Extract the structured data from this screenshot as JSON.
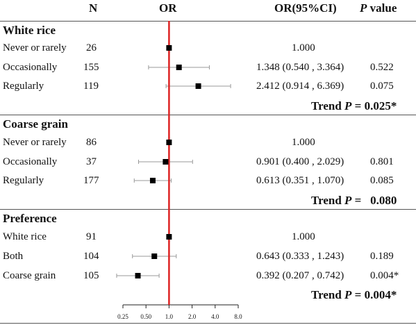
{
  "headers": {
    "n": "N",
    "or": "OR",
    "ci": "OR(95%CI)",
    "p_italic": "P",
    "p_rest": " value"
  },
  "groups": [
    {
      "title": "White rice",
      "rows": [
        {
          "label": "Never or rarely",
          "n": "26",
          "ci_text": "1.000",
          "p": ""
        },
        {
          "label": "Occasionally",
          "n": "155",
          "ci_text": "1.348 (0.540 , 3.364)",
          "p": "0.522"
        },
        {
          "label": "Regularly",
          "n": "119",
          "ci_text": "2.412 (0.914 , 6.369)",
          "p": "0.075"
        }
      ],
      "trend_prefix": "Trend ",
      "trend_p": "P",
      "trend_value": " = 0.025*"
    },
    {
      "title": "Coarse grain",
      "rows": [
        {
          "label": "Never or rarely",
          "n": "86",
          "ci_text": "1.000",
          "p": ""
        },
        {
          "label": "Occasionally",
          "n": "37",
          "ci_text": "0.901 (0.400 , 2.029)",
          "p": "0.801"
        },
        {
          "label": "Regularly",
          "n": "177",
          "ci_text": "0.613 (0.351 , 1.070)",
          "p": "0.085"
        }
      ],
      "trend_prefix": "Trend ",
      "trend_p": "P",
      "trend_value": " =   0.080"
    },
    {
      "title": "Preference",
      "rows": [
        {
          "label": "White rice",
          "n": "91",
          "ci_text": "1.000",
          "p": ""
        },
        {
          "label": "Both",
          "n": "104",
          "ci_text": "0.643 (0.333 , 1.243)",
          "p": "0.189"
        },
        {
          "label": "Coarse grain",
          "n": "105",
          "ci_text": "0.392 (0.207 , 0.742)",
          "p": "0.004*"
        }
      ],
      "trend_prefix": "Trend ",
      "trend_p": "P",
      "trend_value": " = 0.004*"
    }
  ],
  "chart_data": {
    "type": "forest",
    "xscale": "log2",
    "xlim": [
      0.25,
      8.0
    ],
    "reference_line": 1.0,
    "reference_color": "#dd2222",
    "tick_labels": [
      "0.25",
      "0.50",
      "1.0",
      "2.0",
      "4.0",
      "8.0"
    ],
    "tick_values": [
      0.25,
      0.5,
      1.0,
      2.0,
      4.0,
      8.0
    ],
    "points": [
      {
        "group": "White rice",
        "label": "Never or rarely",
        "or": 1.0,
        "lo": null,
        "hi": null
      },
      {
        "group": "White rice",
        "label": "Occasionally",
        "or": 1.348,
        "lo": 0.54,
        "hi": 3.364
      },
      {
        "group": "White rice",
        "label": "Regularly",
        "or": 2.412,
        "lo": 0.914,
        "hi": 6.369
      },
      {
        "group": "Coarse grain",
        "label": "Never or rarely",
        "or": 1.0,
        "lo": null,
        "hi": null
      },
      {
        "group": "Coarse grain",
        "label": "Occasionally",
        "or": 0.901,
        "lo": 0.4,
        "hi": 2.029
      },
      {
        "group": "Coarse grain",
        "label": "Regularly",
        "or": 0.613,
        "lo": 0.351,
        "hi": 1.07
      },
      {
        "group": "Preference",
        "label": "White rice",
        "or": 1.0,
        "lo": null,
        "hi": null
      },
      {
        "group": "Preference",
        "label": "Both",
        "or": 0.643,
        "lo": 0.333,
        "hi": 1.243
      },
      {
        "group": "Preference",
        "label": "Coarse grain",
        "or": 0.392,
        "lo": 0.207,
        "hi": 0.742
      }
    ]
  }
}
